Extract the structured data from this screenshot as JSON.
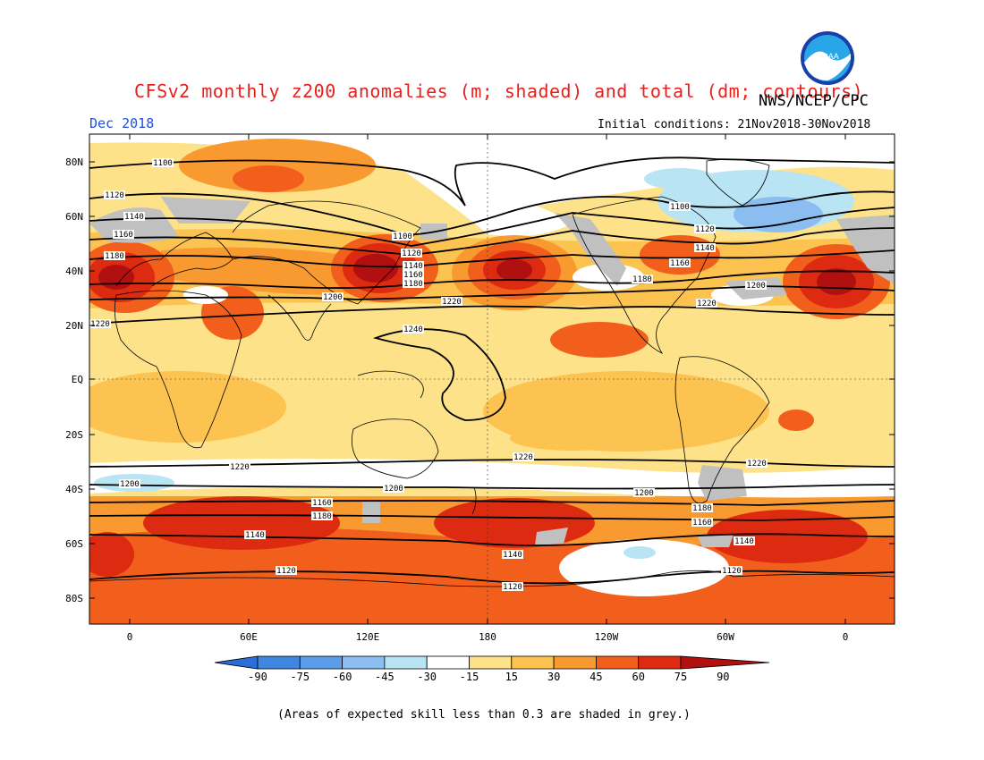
{
  "header": {
    "title": "CFSv2 monthly z200 anomalies (m; shaded) and total (dm; contours)",
    "agency": "NWS/NCEP/CPC",
    "valid_month": "Dec 2018",
    "initial_conditions": "Initial conditions: 21Nov2018-30Nov2018",
    "logo_text": "NOAA"
  },
  "axes": {
    "lat_labels": [
      "80N",
      "60N",
      "40N",
      "20N",
      "EQ",
      "20S",
      "40S",
      "60S",
      "80S"
    ],
    "lon_labels": [
      "0",
      "60E",
      "120E",
      "180",
      "120W",
      "60W",
      "0"
    ]
  },
  "colorbar": {
    "labels": [
      "-90",
      "-75",
      "-60",
      "-45",
      "-30",
      "-15",
      "15",
      "30",
      "45",
      "60",
      "75",
      "90"
    ],
    "colors": [
      "#2b6fd6",
      "#3f86e0",
      "#5c9ce8",
      "#8cbdf0",
      "#b8e4f4",
      "#ffffff",
      "#fde28a",
      "#fcc350",
      "#f99a30",
      "#f25f1c",
      "#dd2b12",
      "#b01010"
    ]
  },
  "contour_labels": [
    {
      "text": "1100"
    },
    {
      "text": "1120"
    },
    {
      "text": "1140"
    },
    {
      "text": "1160"
    },
    {
      "text": "1180"
    },
    {
      "text": "1200"
    },
    {
      "text": "1220"
    },
    {
      "text": "1240"
    }
  ],
  "footnote": "(Areas of expected skill less than 0.3 are shaded in grey.)",
  "palette": {
    "grey_skill": "#c0c0c0",
    "title_red": "#e8201c",
    "month_blue": "#1e50e0"
  }
}
